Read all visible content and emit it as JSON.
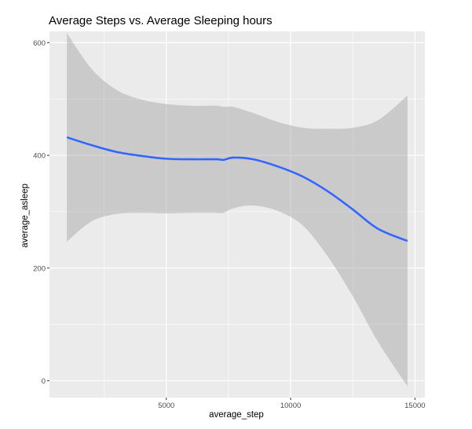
{
  "chart_data": {
    "type": "line",
    "title": "Average Steps vs. Average Sleeping hours",
    "xlabel": "average_step",
    "ylabel": "average_asleep",
    "xlim": [
      300,
      15400
    ],
    "ylim": [
      -30,
      620
    ],
    "xticks": [
      5000,
      10000,
      15000
    ],
    "yticks": [
      0,
      200,
      400,
      600
    ],
    "grid": true,
    "panel_background": "#ebebeb",
    "grid_color": "#ffffff",
    "line_color": "#3366ff",
    "band_color": "#999999",
    "series": [
      {
        "x": [
          1000,
          2000,
          3000,
          4000,
          5000,
          6000,
          7000,
          7300,
          7700,
          8500,
          9500,
          10500,
          11500,
          12500,
          13500,
          14700
        ],
        "y": [
          432,
          418,
          406,
          399,
          394,
          393,
          393,
          392,
          396,
          393,
          380,
          362,
          336,
          304,
          270,
          248
        ],
        "ymin": [
          247,
          283,
          296,
          298,
          297,
          298,
          298,
          298,
          306,
          311,
          301,
          275,
          220,
          150,
          70,
          -10
        ],
        "ymax": [
          617,
          553,
          516,
          499,
          491,
          488,
          488,
          486,
          486,
          475,
          459,
          449,
          447,
          449,
          462,
          506
        ]
      }
    ]
  }
}
